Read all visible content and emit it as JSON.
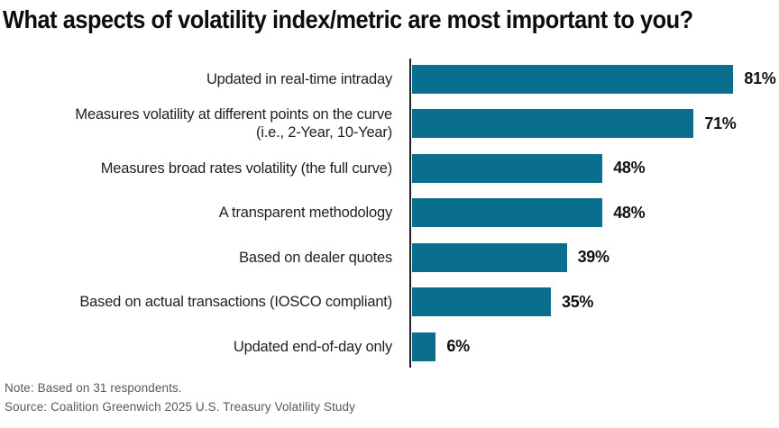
{
  "chart_data": {
    "type": "bar",
    "orientation": "horizontal",
    "title": "What aspects of volatility index/metric are most important to you?",
    "unit": "%",
    "xlim": [
      0,
      100
    ],
    "bar_color": "#0a6e8e",
    "categories": [
      "Updated in real-time intraday",
      "Measures volatility at different points on the curve (i.e., 2-Year, 10-Year)",
      "Measures broad rates volatility (the full curve)",
      "A transparent methodology",
      "Based on dealer quotes",
      "Based on actual transactions (IOSCO compliant)",
      "Updated end-of-day only"
    ],
    "values": [
      81,
      71,
      48,
      48,
      39,
      35,
      6
    ],
    "rows": [
      {
        "label_lines": [
          "Updated in real-time intraday"
        ],
        "value": 81,
        "value_label": "81%"
      },
      {
        "label_lines": [
          "Measures volatility at different points on the curve",
          "(i.e., 2-Year, 10-Year)"
        ],
        "value": 71,
        "value_label": "71%"
      },
      {
        "label_lines": [
          "Measures broad rates volatility (the full curve)"
        ],
        "value": 48,
        "value_label": "48%"
      },
      {
        "label_lines": [
          "A transparent methodology"
        ],
        "value": 48,
        "value_label": "48%"
      },
      {
        "label_lines": [
          "Based on dealer quotes"
        ],
        "value": 39,
        "value_label": "39%"
      },
      {
        "label_lines": [
          "Based on actual transactions (IOSCO compliant)"
        ],
        "value": 35,
        "value_label": "35%"
      },
      {
        "label_lines": [
          "Updated end-of-day only"
        ],
        "value": 6,
        "value_label": "6%"
      }
    ],
    "note": "Note: Based on 31 respondents.",
    "source": "Source: Coalition Greenwich 2025 U.S. Treasury Volatility Study"
  }
}
